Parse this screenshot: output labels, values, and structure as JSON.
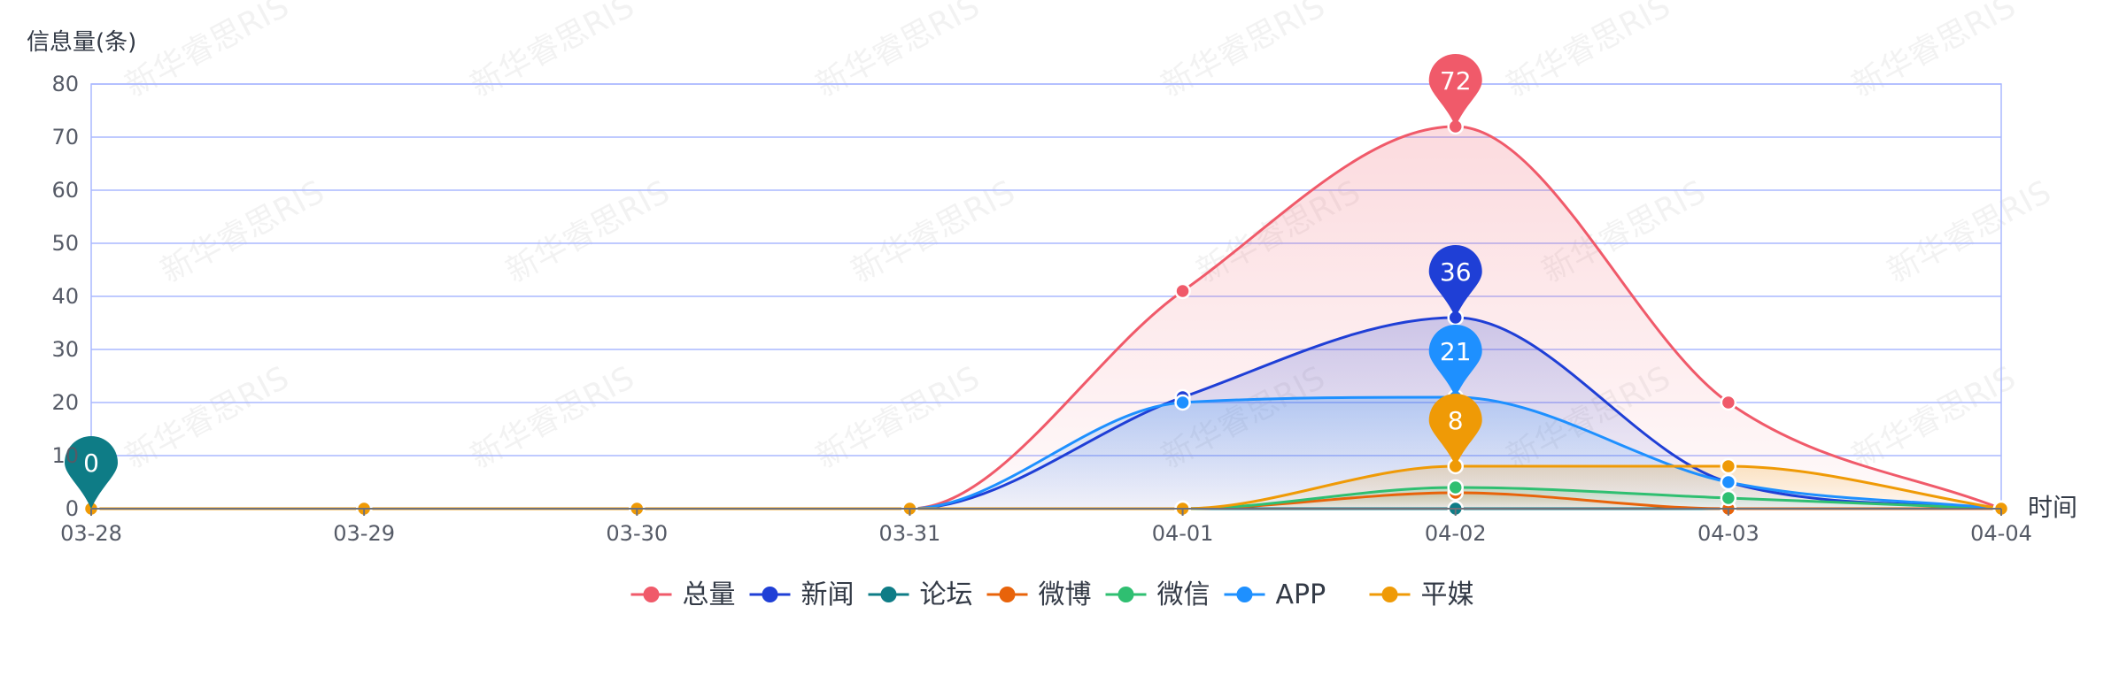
{
  "watermark_text": "新华睿思RIS",
  "chart_data": {
    "type": "line",
    "smooth": true,
    "area": true,
    "ylabel": "信息量(条)",
    "xlabel": "时间",
    "categories": [
      "03-28",
      "03-29",
      "03-30",
      "03-31",
      "04-01",
      "04-02",
      "04-03",
      "04-04"
    ],
    "ylim": [
      0,
      80
    ],
    "yticks": [
      0,
      10,
      20,
      30,
      40,
      50,
      60,
      70,
      80
    ],
    "grid": true,
    "legend_position": "bottom-center",
    "series": [
      {
        "name": "总量",
        "color": "#f05a6a",
        "values": [
          0,
          0,
          0,
          0,
          41,
          72,
          20,
          0
        ],
        "max_pin": {
          "value": "72",
          "index": 5
        }
      },
      {
        "name": "新闻",
        "color": "#1f3fd6",
        "values": [
          0,
          0,
          0,
          0,
          21,
          36,
          5,
          0
        ],
        "max_pin": {
          "value": "36",
          "index": 5
        }
      },
      {
        "name": "论坛",
        "color": "#0e7c86",
        "values": [
          0,
          0,
          0,
          0,
          0,
          0,
          0,
          0
        ],
        "max_pin": {
          "value": "0",
          "index": 0
        }
      },
      {
        "name": "微博",
        "color": "#e8630a",
        "values": [
          0,
          0,
          0,
          0,
          0,
          3,
          0,
          0
        ]
      },
      {
        "name": "微信",
        "color": "#2fbf71",
        "values": [
          0,
          0,
          0,
          0,
          0,
          4,
          2,
          0
        ]
      },
      {
        "name": "APP",
        "color": "#1e90ff",
        "values": [
          0,
          0,
          0,
          0,
          20,
          21,
          5,
          0
        ],
        "max_pin": {
          "value": "21",
          "index": 5
        }
      },
      {
        "name": "平媒",
        "color": "#ef9a06",
        "values": [
          0,
          0,
          0,
          0,
          0,
          8,
          8,
          0
        ],
        "max_pin": {
          "value": "8",
          "index": 5
        }
      }
    ]
  }
}
